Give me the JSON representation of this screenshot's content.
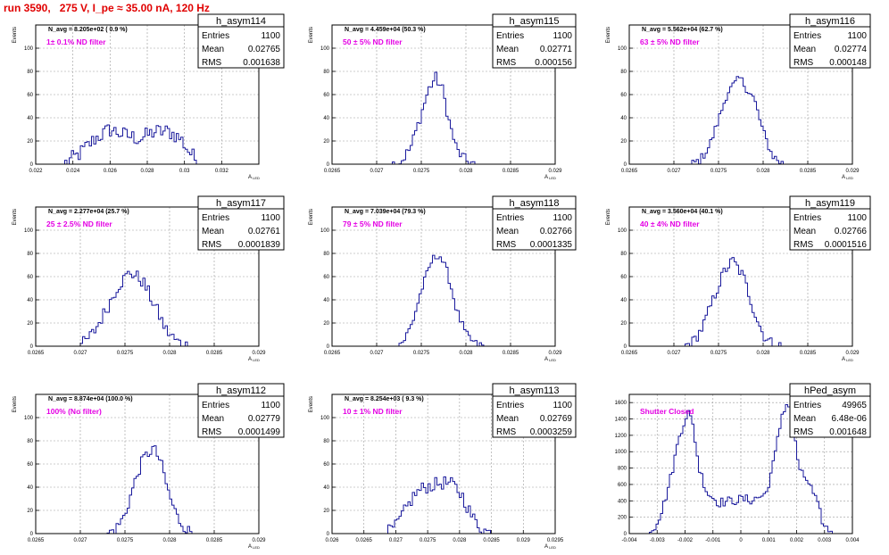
{
  "run_title": "run 3590,   275 V, I_pe ≈ 35.00 nA, 120 Hz",
  "colors": {
    "hist": "#1a1a9c",
    "annot": "#e400e4",
    "title": "#e00000",
    "frame": "#000000"
  },
  "chart_data": [
    {
      "type": "histogram",
      "name": "h_asym114",
      "stats": {
        "entries": "1100",
        "mean": "0.02765",
        "rms": "0.001638"
      },
      "navg": "N_avg = 8.205e+02 ( 0.9 %)",
      "filter": "1± 0.1% ND filter",
      "xlabel": "A_LED",
      "ylabel": "Events",
      "xlim": [
        0.022,
        0.034
      ],
      "ylim": [
        0,
        120
      ],
      "xticks": [
        0.022,
        0.024,
        0.026,
        0.028,
        0.03,
        0.032,
        0.034
      ],
      "xticklabels": [
        "0.022",
        "0.024",
        "0.026",
        "0.028",
        "0.03",
        "0.032",
        ""
      ],
      "yticks": [
        0,
        20,
        40,
        60,
        80,
        100,
        120
      ],
      "yticklabels": [
        "0",
        "20",
        "40",
        "60",
        "80",
        "100",
        ""
      ],
      "profile": [
        [
          0.0235,
          0
        ],
        [
          0.0243,
          8
        ],
        [
          0.0252,
          22
        ],
        [
          0.026,
          30
        ],
        [
          0.0268,
          25
        ],
        [
          0.0276,
          22
        ],
        [
          0.0284,
          28
        ],
        [
          0.0292,
          28
        ],
        [
          0.0298,
          22
        ],
        [
          0.0302,
          12
        ],
        [
          0.0306,
          4
        ],
        [
          0.031,
          0
        ]
      ],
      "noise": 7
    },
    {
      "type": "histogram",
      "name": "h_asym115",
      "stats": {
        "entries": "1100",
        "mean": "0.02771",
        "rms": "0.000156"
      },
      "navg": "N_avg = 4.459e+04 (50.3 %)",
      "filter": "50 ± 5% ND filter",
      "xlabel": "A_LED",
      "ylabel": "Events",
      "xlim": [
        0.0265,
        0.029
      ],
      "ylim": [
        0,
        120
      ],
      "xticks": [
        0.0265,
        0.027,
        0.0275,
        0.028,
        0.0285,
        0.029
      ],
      "xticklabels": [
        "0.0265",
        "0.027",
        "0.0275",
        "0.028",
        "0.0285",
        "0.029"
      ],
      "yticks": [
        0,
        20,
        40,
        60,
        80,
        100,
        120
      ],
      "yticklabels": [
        "0",
        "20",
        "40",
        "60",
        "80",
        "100",
        ""
      ],
      "profile": [
        [
          0.02718,
          0
        ],
        [
          0.02728,
          3
        ],
        [
          0.02738,
          14
        ],
        [
          0.02748,
          38
        ],
        [
          0.02758,
          64
        ],
        [
          0.02766,
          75
        ],
        [
          0.02774,
          64
        ],
        [
          0.02782,
          34
        ],
        [
          0.0279,
          12
        ],
        [
          0.028,
          3
        ],
        [
          0.0281,
          0
        ]
      ],
      "noise": 5
    },
    {
      "type": "histogram",
      "name": "h_asym116",
      "stats": {
        "entries": "1100",
        "mean": "0.02774",
        "rms": "0.000148"
      },
      "navg": "N_avg = 5.562e+04 (62.7 %)",
      "filter": "63 ± 5% ND filter",
      "xlabel": "A_LED",
      "ylabel": "Events",
      "xlim": [
        0.0265,
        0.029
      ],
      "ylim": [
        0,
        120
      ],
      "xticks": [
        0.0265,
        0.027,
        0.0275,
        0.028,
        0.0285,
        0.029
      ],
      "xticklabels": [
        "0.0265",
        "0.027",
        "0.0275",
        "0.028",
        "0.0285",
        "0.029"
      ],
      "yticks": [
        0,
        20,
        40,
        60,
        80,
        100,
        120
      ],
      "yticklabels": [
        "0",
        "20",
        "40",
        "60",
        "80",
        "100",
        ""
      ],
      "profile": [
        [
          0.0272,
          0
        ],
        [
          0.0273,
          4
        ],
        [
          0.0274,
          16
        ],
        [
          0.0275,
          38
        ],
        [
          0.0276,
          62
        ],
        [
          0.02774,
          74
        ],
        [
          0.0279,
          56
        ],
        [
          0.028,
          28
        ],
        [
          0.0281,
          8
        ],
        [
          0.0282,
          1
        ],
        [
          0.0283,
          0
        ]
      ],
      "noise": 4
    },
    {
      "type": "histogram",
      "name": "h_asym117",
      "stats": {
        "entries": "1100",
        "mean": "0.02761",
        "rms": "0.0001839"
      },
      "navg": "N_avg = 2.277e+04 (25.7 %)",
      "filter": "25 ± 2.5% ND filter",
      "xlabel": "A_LED",
      "ylabel": "Events",
      "xlim": [
        0.0265,
        0.029
      ],
      "ylim": [
        0,
        120
      ],
      "xticks": [
        0.0265,
        0.027,
        0.0275,
        0.028,
        0.0285,
        0.029
      ],
      "xticklabels": [
        "0.0265",
        "0.027",
        "0.0275",
        "0.028",
        "0.0285",
        "0.029"
      ],
      "yticks": [
        0,
        20,
        40,
        60,
        80,
        100,
        120
      ],
      "yticklabels": [
        "0",
        "20",
        "40",
        "60",
        "80",
        "100",
        ""
      ],
      "profile": [
        [
          0.02695,
          0
        ],
        [
          0.02705,
          3
        ],
        [
          0.02715,
          12
        ],
        [
          0.02728,
          30
        ],
        [
          0.02742,
          52
        ],
        [
          0.02756,
          64
        ],
        [
          0.0277,
          56
        ],
        [
          0.02784,
          34
        ],
        [
          0.02796,
          14
        ],
        [
          0.02808,
          4
        ],
        [
          0.0282,
          0
        ]
      ],
      "noise": 6
    },
    {
      "type": "histogram",
      "name": "h_asym118",
      "stats": {
        "entries": "1100",
        "mean": "0.02766",
        "rms": "0.0001335"
      },
      "navg": "N_avg = 7.039e+04 (79.3 %)",
      "filter": "79 ± 5% ND filter",
      "xlabel": "A_LED",
      "ylabel": "Events",
      "xlim": [
        0.0265,
        0.029
      ],
      "ylim": [
        0,
        120
      ],
      "xticks": [
        0.0265,
        0.027,
        0.0275,
        0.028,
        0.0285,
        0.029
      ],
      "xticklabels": [
        "0.0265",
        "0.027",
        "0.0275",
        "0.028",
        "0.0285",
        "0.029"
      ],
      "yticks": [
        0,
        20,
        40,
        60,
        80,
        100,
        120
      ],
      "yticklabels": [
        "0",
        "20",
        "40",
        "60",
        "80",
        "100",
        ""
      ],
      "profile": [
        [
          0.0272,
          0
        ],
        [
          0.0273,
          4
        ],
        [
          0.0274,
          20
        ],
        [
          0.0275,
          48
        ],
        [
          0.02762,
          74
        ],
        [
          0.0277,
          80
        ],
        [
          0.0278,
          62
        ],
        [
          0.0279,
          30
        ],
        [
          0.028,
          10
        ],
        [
          0.0281,
          2
        ],
        [
          0.0282,
          0
        ]
      ],
      "noise": 4
    },
    {
      "type": "histogram",
      "name": "h_asym119",
      "stats": {
        "entries": "1100",
        "mean": "0.02766",
        "rms": "0.0001516"
      },
      "navg": "N_avg = 3.560e+04 (40.1 %)",
      "filter": "40 ± 4% ND filter",
      "xlabel": "A_LED",
      "ylabel": "Events",
      "xlim": [
        0.0265,
        0.029
      ],
      "ylim": [
        0,
        120
      ],
      "xticks": [
        0.0265,
        0.027,
        0.0275,
        0.028,
        0.0285,
        0.029
      ],
      "xticklabels": [
        "0.0265",
        "0.027",
        "0.0275",
        "0.028",
        "0.0285",
        "0.029"
      ],
      "yticks": [
        0,
        20,
        40,
        60,
        80,
        100,
        120
      ],
      "yticklabels": [
        "0",
        "20",
        "40",
        "60",
        "80",
        "100",
        ""
      ],
      "profile": [
        [
          0.02712,
          0
        ],
        [
          0.02722,
          4
        ],
        [
          0.02732,
          16
        ],
        [
          0.02744,
          40
        ],
        [
          0.02756,
          64
        ],
        [
          0.02766,
          74
        ],
        [
          0.02778,
          60
        ],
        [
          0.0279,
          30
        ],
        [
          0.028,
          10
        ],
        [
          0.0281,
          2
        ],
        [
          0.0282,
          0
        ]
      ],
      "noise": 5
    },
    {
      "type": "histogram",
      "name": "h_asym112",
      "stats": {
        "entries": "1100",
        "mean": "0.02779",
        "rms": "0.0001499"
      },
      "navg": "N_avg = 8.874e+04 (100.0 %)",
      "filter": "100% (No filter)",
      "xlabel": "A_LED",
      "ylabel": "Events",
      "xlim": [
        0.0265,
        0.029
      ],
      "ylim": [
        0,
        120
      ],
      "xticks": [
        0.0265,
        0.027,
        0.0275,
        0.028,
        0.0285,
        0.029
      ],
      "xticklabels": [
        "0.0265",
        "0.027",
        "0.0275",
        "0.028",
        "0.0285",
        "0.029"
      ],
      "yticks": [
        0,
        20,
        40,
        60,
        80,
        100,
        120
      ],
      "yticklabels": [
        "0",
        "20",
        "40",
        "60",
        "80",
        "100",
        ""
      ],
      "profile": [
        [
          0.0273,
          0
        ],
        [
          0.0274,
          4
        ],
        [
          0.0275,
          16
        ],
        [
          0.0276,
          42
        ],
        [
          0.0277,
          64
        ],
        [
          0.02782,
          74
        ],
        [
          0.0279,
          62
        ],
        [
          0.028,
          32
        ],
        [
          0.0281,
          12
        ],
        [
          0.0282,
          3
        ],
        [
          0.0283,
          0
        ]
      ],
      "noise": 5
    },
    {
      "type": "histogram",
      "name": "h_asym113",
      "stats": {
        "entries": "1100",
        "mean": "0.02769",
        "rms": "0.0003259"
      },
      "navg": "N_avg = 8.254e+03 ( 9.3 %)",
      "filter": "10 ± 1% ND filter",
      "xlabel": "A_LED",
      "ylabel": "Events",
      "xlim": [
        0.026,
        0.0295
      ],
      "ylim": [
        0,
        120
      ],
      "xticks": [
        0.026,
        0.0265,
        0.027,
        0.0275,
        0.028,
        0.0285,
        0.029,
        0.0295
      ],
      "xticklabels": [
        "0.026",
        "0.0265",
        "0.027",
        "0.0275",
        "0.028",
        "0.0285",
        "0.029",
        "0.0295"
      ],
      "yticks": [
        0,
        20,
        40,
        60,
        80,
        100,
        120
      ],
      "yticklabels": [
        "0",
        "20",
        "40",
        "60",
        "80",
        "100",
        ""
      ],
      "profile": [
        [
          0.02685,
          0
        ],
        [
          0.027,
          6
        ],
        [
          0.02715,
          20
        ],
        [
          0.0273,
          34
        ],
        [
          0.02745,
          40
        ],
        [
          0.0276,
          42
        ],
        [
          0.02775,
          44
        ],
        [
          0.0279,
          42
        ],
        [
          0.02805,
          32
        ],
        [
          0.0282,
          14
        ],
        [
          0.02835,
          4
        ],
        [
          0.0285,
          0
        ]
      ],
      "noise": 6
    },
    {
      "type": "histogram",
      "name": "hPed_asym",
      "stats": {
        "entries": "49965",
        "mean": "6.48e-06",
        "rms": "0.001648"
      },
      "navg": "",
      "filter": "Shutter Closed",
      "xlabel": "",
      "ylabel": "",
      "xlim": [
        -0.004,
        0.004
      ],
      "ylim": [
        0,
        1700
      ],
      "xticks": [
        -0.004,
        -0.003,
        -0.002,
        -0.001,
        0,
        0.001,
        0.002,
        0.003,
        0.004
      ],
      "xticklabels": [
        "-0.004",
        "-0.003",
        "-0.002",
        "-0.001",
        "0",
        "0.001",
        "0.002",
        "0.003",
        "0.004"
      ],
      "yticks": [
        0,
        200,
        400,
        600,
        800,
        1000,
        1200,
        1400,
        1600
      ],
      "yticklabels": [
        "0",
        "200",
        "400",
        "600",
        "800",
        "1000",
        "1200",
        "1400",
        "1600"
      ],
      "profile": [
        [
          -0.0034,
          0
        ],
        [
          -0.0031,
          80
        ],
        [
          -0.0028,
          300
        ],
        [
          -0.0025,
          700
        ],
        [
          -0.0022,
          1200
        ],
        [
          -0.0019,
          1500
        ],
        [
          -0.0017,
          1300
        ],
        [
          -0.0015,
          800
        ],
        [
          -0.0012,
          500
        ],
        [
          -0.0008,
          380
        ],
        [
          -0.0003,
          400
        ],
        [
          0,
          420
        ],
        [
          0.0004,
          410
        ],
        [
          0.0009,
          480
        ],
        [
          0.0012,
          900
        ],
        [
          0.0015,
          1500
        ],
        [
          0.0017,
          1600
        ],
        [
          0.0019,
          1300
        ],
        [
          0.0021,
          750
        ],
        [
          0.0024,
          650
        ],
        [
          0.0027,
          400
        ],
        [
          0.003,
          80
        ],
        [
          0.0034,
          0
        ]
      ],
      "noise": 60
    }
  ]
}
